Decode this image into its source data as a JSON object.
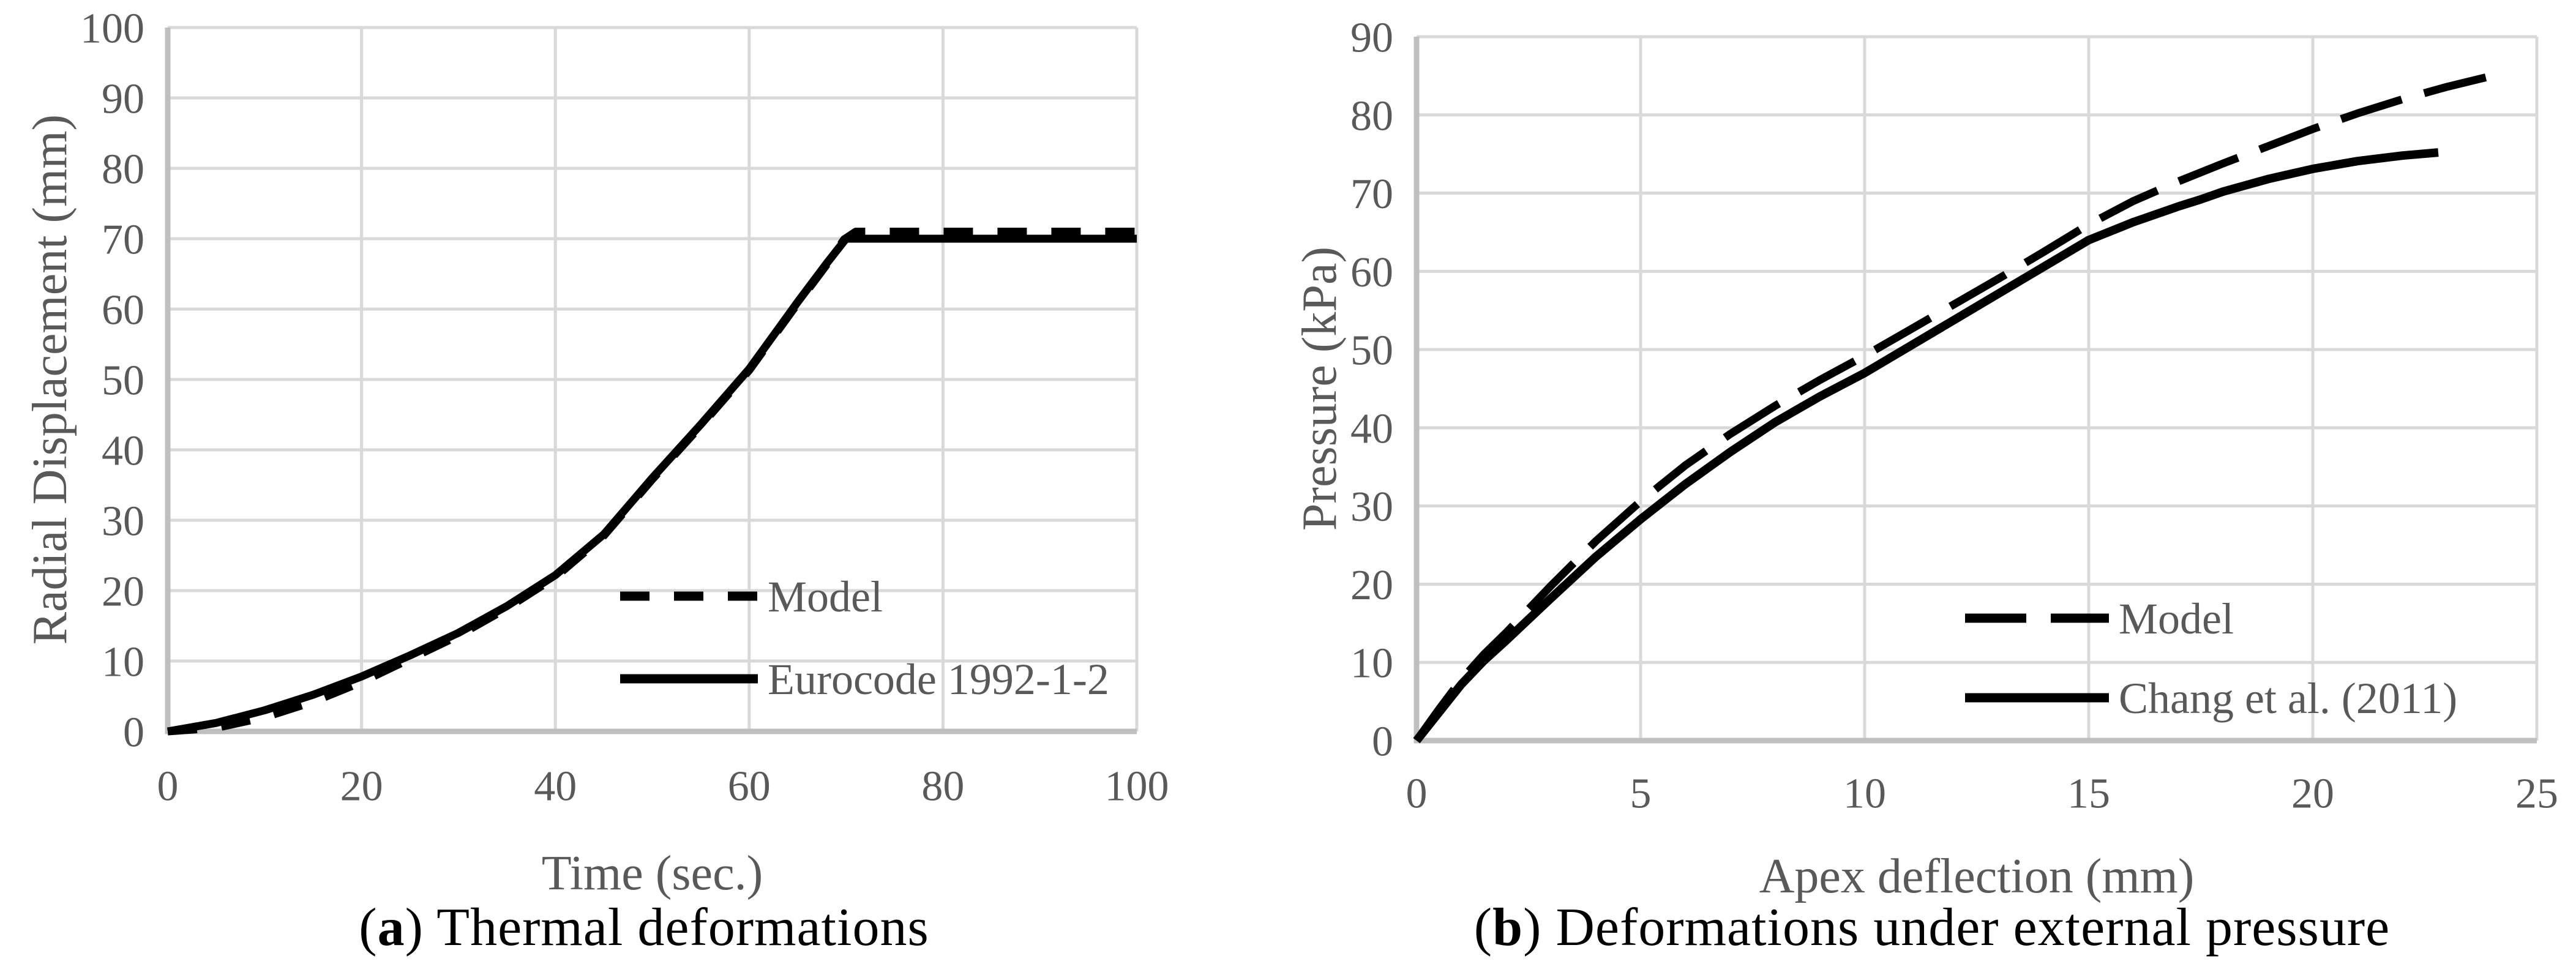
{
  "colors": {
    "background": "#ffffff",
    "grid": "#d9d9d9",
    "axis": "#bfbfbf",
    "tick_label": "#595959",
    "axis_title": "#595959",
    "legend_text": "#595959",
    "curve": "#000000",
    "caption": "#000000"
  },
  "chart_data": [
    {
      "type": "line",
      "caption": {
        "open": "(",
        "letter": "a",
        "rest": ") Thermal deformations"
      },
      "xlabel": "Time (sec.)",
      "ylabel": "Radial Displacement (mm)",
      "xlim": [
        0,
        100
      ],
      "ylim": [
        0,
        100
      ],
      "x_ticks": [
        0,
        20,
        40,
        60,
        80,
        100
      ],
      "y_ticks": [
        0,
        10,
        20,
        30,
        40,
        50,
        60,
        70,
        80,
        90,
        100
      ],
      "grid": true,
      "legend_position": "inside-lower-right",
      "series": [
        {
          "name": "Model",
          "style": "dashed",
          "color": "#000000",
          "points": [
            [
              0,
              0
            ],
            [
              5,
              0.5
            ],
            [
              10,
              2.0
            ],
            [
              15,
              4.2
            ],
            [
              20,
              7.0
            ],
            [
              25,
              10.3
            ],
            [
              30,
              13.6
            ],
            [
              35,
              17.5
            ],
            [
              40,
              21.9
            ],
            [
              45,
              27.8
            ],
            [
              50,
              35.8
            ],
            [
              55,
              43.4
            ],
            [
              60,
              51.3
            ],
            [
              65,
              60.8
            ],
            [
              68,
              66.3
            ],
            [
              69.8,
              69.9
            ],
            [
              71,
              71.0
            ],
            [
              100,
              71.0
            ]
          ]
        },
        {
          "name": "Eurocode 1992-1-2",
          "style": "solid",
          "color": "#000000",
          "points": [
            [
              0,
              0
            ],
            [
              5,
              1.2
            ],
            [
              10,
              3.0
            ],
            [
              15,
              5.2
            ],
            [
              20,
              7.8
            ],
            [
              25,
              10.8
            ],
            [
              30,
              14.0
            ],
            [
              35,
              17.8
            ],
            [
              40,
              22.2
            ],
            [
              45,
              28.0
            ],
            [
              50,
              36.0
            ],
            [
              55,
              43.6
            ],
            [
              60,
              51.5
            ],
            [
              65,
              61.0
            ],
            [
              68,
              66.5
            ],
            [
              70,
              70.0
            ],
            [
              100,
              70.0
            ]
          ]
        }
      ]
    },
    {
      "type": "line",
      "caption": {
        "open": "(",
        "letter": "b",
        "rest": ") Deformations under external pressure"
      },
      "xlabel": "Apex deflection (mm)",
      "ylabel": "Pressure (kPa)",
      "xlim": [
        0,
        25
      ],
      "ylim": [
        0,
        90
      ],
      "x_ticks": [
        0,
        5,
        10,
        15,
        20,
        25
      ],
      "y_ticks": [
        0,
        10,
        20,
        30,
        40,
        50,
        60,
        70,
        80,
        90
      ],
      "grid": true,
      "legend_position": "inside-lower-right",
      "series": [
        {
          "name": "Model",
          "style": "dashed",
          "color": "#000000",
          "points": [
            [
              0,
              0
            ],
            [
              0.5,
              4.0
            ],
            [
              1,
              7.8
            ],
            [
              1.5,
              11.0
            ],
            [
              2,
              13.8
            ],
            [
              2.5,
              16.8
            ],
            [
              3,
              19.8
            ],
            [
              4,
              25.5
            ],
            [
              5,
              30.6
            ],
            [
              6,
              35.2
            ],
            [
              7,
              39.2
            ],
            [
              8,
              42.8
            ],
            [
              9,
              46.1
            ],
            [
              10,
              49.2
            ],
            [
              11,
              52.5
            ],
            [
              12,
              55.8
            ],
            [
              13,
              59.1
            ],
            [
              14,
              62.5
            ],
            [
              15,
              66.0
            ],
            [
              16,
              69.0
            ],
            [
              17,
              71.5
            ],
            [
              18,
              73.8
            ],
            [
              19,
              76.0
            ],
            [
              20,
              78.2
            ],
            [
              21,
              80.2
            ],
            [
              22,
              82.0
            ],
            [
              23,
              83.6
            ],
            [
              24,
              85.0
            ]
          ]
        },
        {
          "name": "Chang et al. (2011)",
          "style": "solid",
          "color": "#000000",
          "points": [
            [
              0,
              0
            ],
            [
              0.5,
              3.6
            ],
            [
              1,
              7.2
            ],
            [
              1.5,
              10.2
            ],
            [
              2,
              12.8
            ],
            [
              2.5,
              15.5
            ],
            [
              3,
              18.2
            ],
            [
              4,
              23.5
            ],
            [
              5,
              28.3
            ],
            [
              6,
              32.8
            ],
            [
              7,
              36.9
            ],
            [
              8,
              40.7
            ],
            [
              9,
              44.0
            ],
            [
              10,
              47.0
            ],
            [
              11,
              50.4
            ],
            [
              12,
              53.8
            ],
            [
              13,
              57.2
            ],
            [
              14,
              60.6
            ],
            [
              15,
              64.0
            ],
            [
              16,
              66.3
            ],
            [
              17,
              68.3
            ],
            [
              17.5,
              69.2
            ],
            [
              18,
              70.2
            ],
            [
              19,
              71.8
            ],
            [
              20,
              73.1
            ],
            [
              21,
              74.1
            ],
            [
              22,
              74.8
            ],
            [
              22.8,
              75.2
            ]
          ]
        }
      ]
    }
  ]
}
